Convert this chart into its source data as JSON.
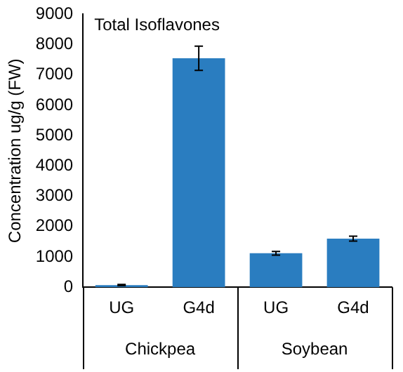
{
  "chart_data": {
    "type": "bar",
    "title": "Total Isoflavones",
    "ylabel": "Concentration ug/g (FW)",
    "categories": [
      "UG",
      "G4d",
      "UG",
      "G4d"
    ],
    "values": [
      70,
      7550,
      1120,
      1600
    ],
    "errors": [
      20,
      400,
      60,
      80
    ],
    "color": "#2a7dc0",
    "ylim": [
      0,
      9000
    ],
    "yticks": [
      0,
      1000,
      2000,
      3000,
      4000,
      5000,
      6000,
      7000,
      8000,
      9000
    ],
    "annotations": [
      "Chickpea",
      "Soybean"
    ],
    "grid": false,
    "legend": false
  }
}
